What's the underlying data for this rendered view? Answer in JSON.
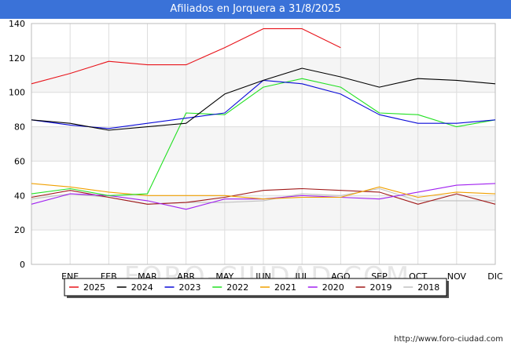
{
  "header": {
    "title": "Afiliados en Jorquera a 31/8/2025"
  },
  "footer": {
    "source": "http://www.foro-ciudad.com"
  },
  "watermark": "FORO-CIUDAD.COM",
  "chart_data": {
    "type": "line",
    "title": "Afiliados en Jorquera a 31/8/2025",
    "xlabel": "",
    "ylabel": "",
    "categories": [
      "",
      "ENE",
      "FEB",
      "MAR",
      "ABR",
      "MAY",
      "JUN",
      "JUL",
      "AGO",
      "SEP",
      "OCT",
      "NOV",
      "DIC"
    ],
    "ylim": [
      0,
      140
    ],
    "yticks": [
      0,
      20,
      40,
      60,
      80,
      100,
      120,
      140
    ],
    "grid": true,
    "legend_position": "bottom",
    "series": [
      {
        "name": "2025",
        "color": "#e8141b",
        "values": [
          105,
          111,
          118,
          116,
          116,
          126,
          137,
          137,
          126,
          null,
          null,
          null,
          null
        ]
      },
      {
        "name": "2024",
        "color": "#000000",
        "values": [
          84,
          82,
          78,
          80,
          82,
          99,
          107,
          114,
          109,
          103,
          108,
          107,
          105
        ]
      },
      {
        "name": "2023",
        "color": "#0a0ad8",
        "values": [
          84,
          81,
          79,
          82,
          85,
          88,
          107,
          105,
          99,
          87,
          82,
          82,
          84
        ]
      },
      {
        "name": "2022",
        "color": "#22e022",
        "values": [
          41,
          44,
          40,
          41,
          88,
          87,
          103,
          108,
          103,
          88,
          87,
          80,
          84
        ]
      },
      {
        "name": "2021",
        "color": "#f0a000",
        "values": [
          47,
          45,
          42,
          40,
          40,
          40,
          38,
          39,
          39,
          45,
          39,
          42,
          41
        ]
      },
      {
        "name": "2020",
        "color": "#a020f0",
        "values": [
          35,
          41,
          40,
          37,
          32,
          38,
          38,
          40,
          39,
          38,
          42,
          46,
          47
        ]
      },
      {
        "name": "2019",
        "color": "#a01818",
        "values": [
          39,
          43,
          39,
          35,
          36,
          39,
          43,
          44,
          43,
          42,
          35,
          41,
          35
        ]
      },
      {
        "name": "2018",
        "color": "#c0c0c0",
        "values": [
          38,
          41,
          39,
          35,
          36,
          36,
          37,
          41,
          40,
          44,
          37,
          37,
          37
        ]
      }
    ]
  }
}
